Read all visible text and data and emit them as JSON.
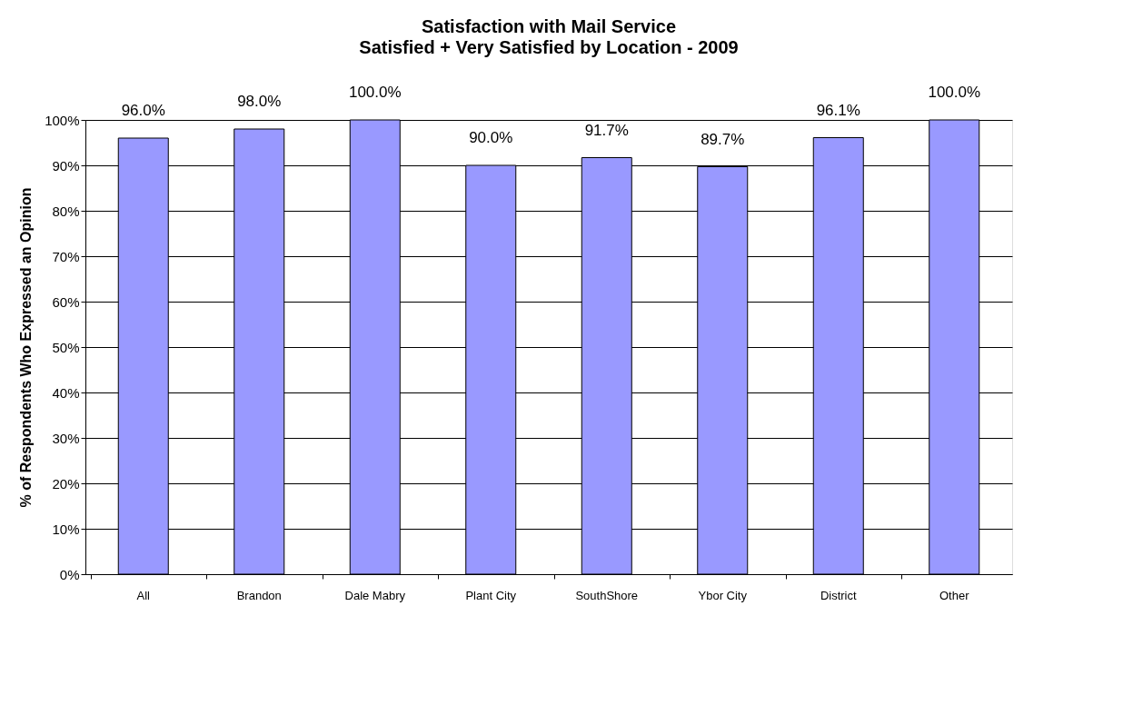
{
  "chart_data": {
    "type": "bar",
    "title": "Satisfaction with Mail Service",
    "subtitle": "Satisfied + Very Satisfied by Location - 2009",
    "ylabel": "% of Respondents Who Expressed an Opinion",
    "categories": [
      "All",
      "Brandon",
      "Dale Mabry",
      "Plant City",
      "SouthShore",
      "Ybor City",
      "District",
      "Other"
    ],
    "values": [
      96.0,
      98.0,
      100.0,
      90.0,
      91.7,
      89.7,
      96.1,
      100.0
    ],
    "value_labels": [
      "96.0%",
      "98.0%",
      "100.0%",
      "90.0%",
      "91.7%",
      "89.7%",
      "96.1%",
      "100.0%"
    ],
    "color": "#9999ff",
    "ylim": [
      0,
      100
    ],
    "yticks": [
      {
        "value": 0,
        "label": "0%"
      },
      {
        "value": 10,
        "label": "10%"
      },
      {
        "value": 20,
        "label": "20%"
      },
      {
        "value": 30,
        "label": "30%"
      },
      {
        "value": 40,
        "label": "40%"
      },
      {
        "value": 50,
        "label": "50%"
      },
      {
        "value": 60,
        "label": "60%"
      },
      {
        "value": 70,
        "label": "70%"
      },
      {
        "value": 80,
        "label": "80%"
      },
      {
        "value": 90,
        "label": "90%"
      },
      {
        "value": 100,
        "label": "100%"
      }
    ],
    "grid": "y"
  }
}
